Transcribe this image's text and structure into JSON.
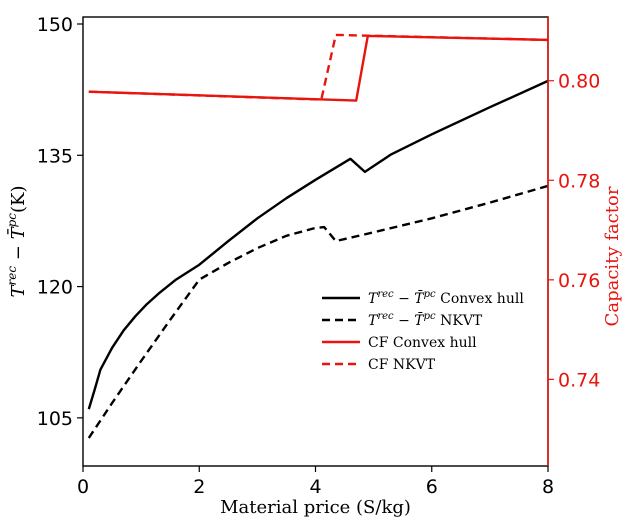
{
  "chart_data": {
    "type": "line",
    "xlabel": "Material price (S/kg)",
    "ylabel_left_main": "T",
    "ylabel_left_sup1": "rec",
    "ylabel_left_mid": " − ",
    "ylabel_left_bar": "T̄",
    "ylabel_left_sup2": "pc",
    "ylabel_left_unit": "(K)",
    "ylabel_right": "Capacity factor",
    "xlim": [
      0,
      8
    ],
    "ylim_left": [
      99.5,
      150.8
    ],
    "ylim_right": [
      0.7226,
      0.8128
    ],
    "x_ticks": [
      "0",
      "2",
      "4",
      "6",
      "8"
    ],
    "x_tick_values": [
      0,
      2,
      4,
      6,
      8
    ],
    "y_left_ticks": [
      "105",
      "120",
      "135",
      "150"
    ],
    "y_left_tick_values": [
      105,
      120,
      135,
      150
    ],
    "y_right_ticks": [
      "0.74",
      "0.76",
      "0.78",
      "0.80"
    ],
    "y_right_tick_values": [
      0.74,
      0.76,
      0.78,
      0.8
    ],
    "left_axis_color": "#000000",
    "right_axis_color": "#e8150f",
    "legend_position": "center-right",
    "series": [
      {
        "name": "T^rec − T̄^pc Convex hull",
        "axis": "left",
        "color": "#000000",
        "dash": "solid",
        "x": [
          0.1,
          0.2,
          0.3,
          0.5,
          0.7,
          0.9,
          1.1,
          1.3,
          1.6,
          2.0,
          2.5,
          3.0,
          3.5,
          4.0,
          4.6,
          4.85,
          5.3,
          6.0,
          7.0,
          8.0
        ],
        "y": [
          106.0,
          108.2,
          110.5,
          113.0,
          115.0,
          116.6,
          118.0,
          119.2,
          120.8,
          122.5,
          125.2,
          127.8,
          130.1,
          132.2,
          134.6,
          133.1,
          135.1,
          137.4,
          140.5,
          143.5
        ]
      },
      {
        "name": "T^rec − T̄^pc NKVT",
        "axis": "left",
        "color": "#000000",
        "dash": "dashed",
        "x": [
          0.1,
          0.5,
          1.0,
          1.5,
          2.0,
          2.5,
          3.0,
          3.5,
          4.0,
          4.15,
          4.35,
          5.0,
          6.0,
          7.0,
          8.0
        ],
        "y": [
          102.7,
          106.7,
          111.5,
          116.2,
          120.8,
          122.7,
          124.4,
          125.8,
          126.7,
          126.8,
          125.2,
          126.2,
          127.8,
          129.6,
          131.5
        ]
      },
      {
        "name": "CF Convex hull",
        "axis": "right",
        "color": "#e8150f",
        "dash": "solid",
        "x": [
          0.1,
          4.7,
          4.9,
          8.0
        ],
        "y": [
          0.7978,
          0.796,
          0.809,
          0.8082
        ]
      },
      {
        "name": "CF NKVT",
        "axis": "right",
        "color": "#e8150f",
        "dash": "dashed",
        "x": [
          0.1,
          4.1,
          4.35,
          8.0
        ],
        "y": [
          0.7978,
          0.7962,
          0.8092,
          0.8082
        ]
      }
    ],
    "legend": [
      {
        "kind": "math",
        "main": "T",
        "sup1": "rec",
        "mid": " − ",
        "bar": "T̄",
        "sup2": "pc",
        "tail": " Convex hull",
        "color": "#000000",
        "dash": "solid"
      },
      {
        "kind": "math",
        "main": "T",
        "sup1": "rec",
        "mid": " − ",
        "bar": "T̄",
        "sup2": "pc",
        "tail": " NKVT",
        "color": "#000000",
        "dash": "dashed"
      },
      {
        "kind": "text",
        "label": "CF Convex hull",
        "color": "#e8150f",
        "dash": "solid"
      },
      {
        "kind": "text",
        "label": "CF NKVT",
        "color": "#e8150f",
        "dash": "dashed"
      }
    ]
  }
}
